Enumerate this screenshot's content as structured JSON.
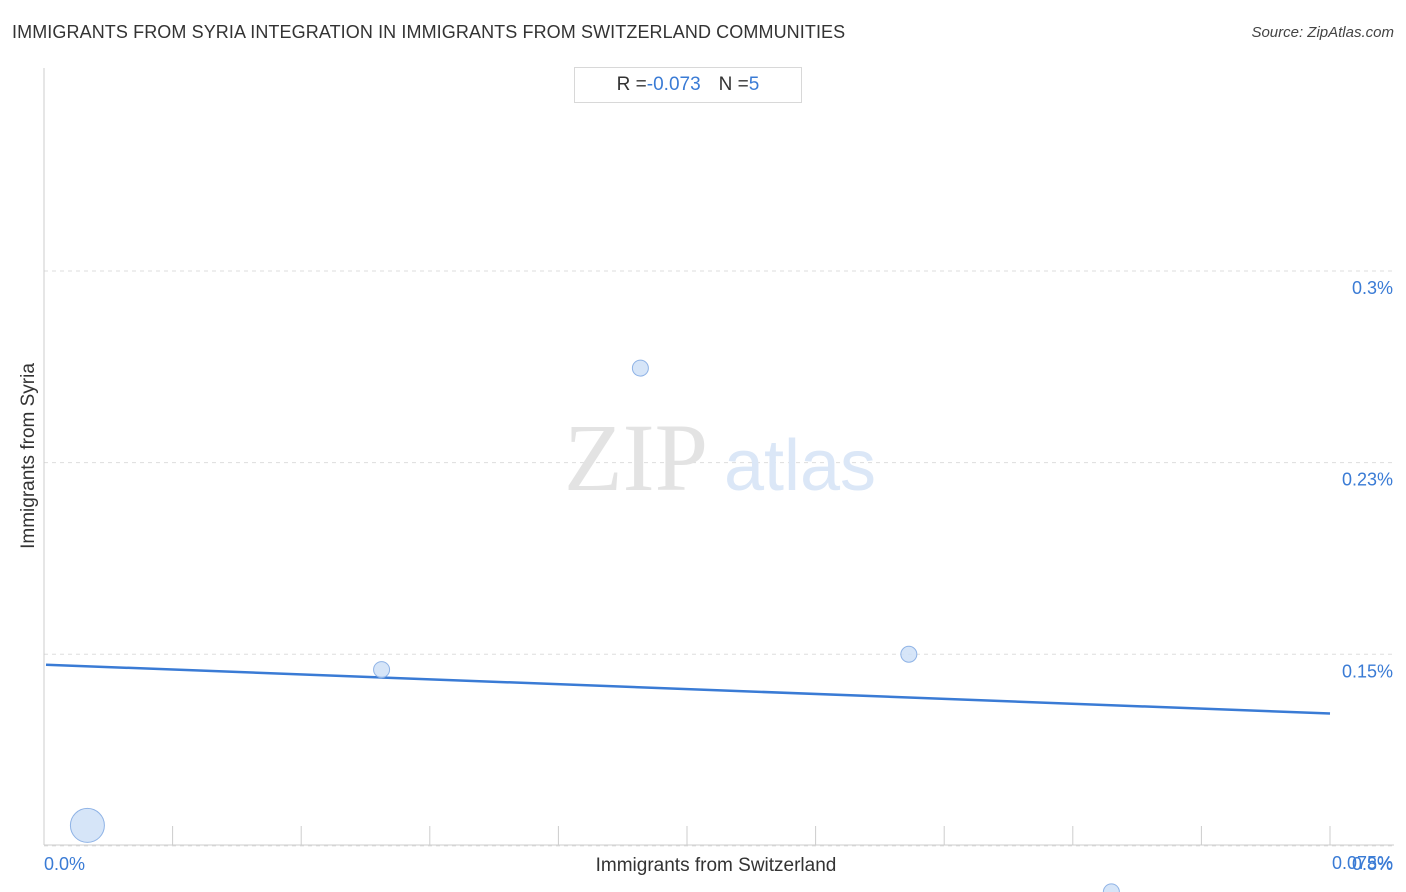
{
  "header": {
    "title": "IMMIGRANTS FROM SYRIA INTEGRATION IN IMMIGRANTS FROM SWITZERLAND COMMUNITIES",
    "source": "Source: ZipAtlas.com"
  },
  "stats": {
    "r_label": "R = ",
    "r_value": "-0.073",
    "n_label": "N = ",
    "n_value": "5"
  },
  "watermark": {
    "zip": "ZIP",
    "atlas": "atlas"
  },
  "colors": {
    "accent": "#3a7bd5",
    "point_fill": "#cfe0f7",
    "point_stroke": "#8fb3e6",
    "grid": "#dddddd"
  },
  "chart_data": {
    "type": "scatter",
    "title": "IMMIGRANTS FROM SYRIA INTEGRATION IN IMMIGRANTS FROM SWITZERLAND COMMUNITIES",
    "xlabel": "Immigrants from Switzerland",
    "ylabel": "Immigrants from Syria",
    "xlim": [
      0,
      0.8
    ],
    "ylim": [
      0,
      0.3
    ],
    "x_tick_labels": [
      {
        "value": 0,
        "label": "0.0%"
      },
      {
        "value": 0.8,
        "label": "0.8%"
      }
    ],
    "y_tick_labels": [
      {
        "value": 0.3,
        "label": "0.3%"
      },
      {
        "value": 0.225,
        "label": "0.23%"
      },
      {
        "value": 0.15,
        "label": "0.15%"
      },
      {
        "value": 0.075,
        "label": "0.075%"
      }
    ],
    "grid": true,
    "points": [
      {
        "x": 0.027,
        "y": 0.083,
        "size": "large"
      },
      {
        "x": 0.21,
        "y": 0.144,
        "size": "small"
      },
      {
        "x": 0.371,
        "y": 0.262,
        "size": "small"
      },
      {
        "x": 0.538,
        "y": 0.15,
        "size": "small"
      },
      {
        "x": 0.664,
        "y": 0.057,
        "size": "small"
      }
    ],
    "trendline": {
      "x": [
        0,
        0.8
      ],
      "y": [
        0.1459,
        0.1268
      ]
    },
    "r": -0.073,
    "n": 5
  }
}
